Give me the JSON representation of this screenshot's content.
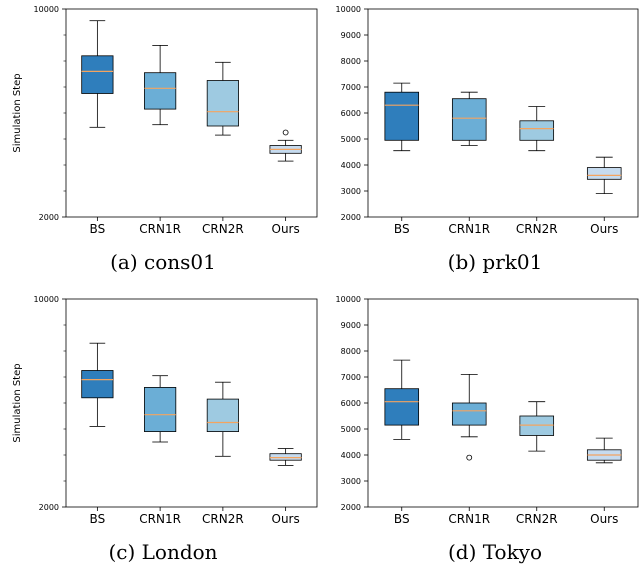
{
  "chart_data": [
    {
      "type": "box",
      "caption": "(a) cons01",
      "ylabel": "Simulation Step",
      "ylim": [
        2000,
        10000
      ],
      "yticks": [
        2000,
        10000
      ],
      "yticks_minor": [
        3000,
        4000,
        5000,
        6000,
        7000,
        8000,
        9000
      ],
      "categories": [
        "BS",
        "CRN1R",
        "CRN2R",
        "Ours"
      ],
      "colors": [
        "#2f7ebc",
        "#6baed6",
        "#9ecae1",
        "#c6dbef"
      ],
      "boxes": [
        {
          "whislo": 5450,
          "q1": 6750,
          "med": 7600,
          "q3": 8200,
          "whishi": 9550,
          "fliers": []
        },
        {
          "whislo": 5550,
          "q1": 6150,
          "med": 6950,
          "q3": 7550,
          "whishi": 8600,
          "fliers": []
        },
        {
          "whislo": 5150,
          "q1": 5500,
          "med": 6050,
          "q3": 7250,
          "whishi": 7950,
          "fliers": []
        },
        {
          "whislo": 4150,
          "q1": 4450,
          "med": 4600,
          "q3": 4750,
          "whishi": 4950,
          "fliers": [
            5250
          ]
        }
      ]
    },
    {
      "type": "box",
      "caption": "(b) prk01",
      "ylabel": "",
      "ylim": [
        2000,
        10000
      ],
      "yticks": [
        2000,
        3000,
        4000,
        5000,
        6000,
        7000,
        8000,
        9000,
        10000
      ],
      "yticks_minor": [],
      "categories": [
        "BS",
        "CRN1R",
        "CRN2R",
        "Ours"
      ],
      "colors": [
        "#2f7ebc",
        "#6baed6",
        "#9ecae1",
        "#c6dbef"
      ],
      "boxes": [
        {
          "whislo": 4550,
          "q1": 4950,
          "med": 6300,
          "q3": 6800,
          "whishi": 7150,
          "fliers": []
        },
        {
          "whislo": 4750,
          "q1": 4950,
          "med": 5800,
          "q3": 6550,
          "whishi": 6800,
          "fliers": []
        },
        {
          "whislo": 4550,
          "q1": 4950,
          "med": 5400,
          "q3": 5700,
          "whishi": 6250,
          "fliers": []
        },
        {
          "whislo": 2900,
          "q1": 3450,
          "med": 3600,
          "q3": 3900,
          "whishi": 4300,
          "fliers": []
        }
      ]
    },
    {
      "type": "box",
      "caption": "(c) London",
      "ylabel": "Simulation Step",
      "ylim": [
        2000,
        10000
      ],
      "yticks": [
        2000,
        10000
      ],
      "yticks_minor": [
        3000,
        4000,
        5000,
        6000,
        7000,
        8000,
        9000
      ],
      "categories": [
        "BS",
        "CRN1R",
        "CRN2R",
        "Ours"
      ],
      "colors": [
        "#2f7ebc",
        "#6baed6",
        "#9ecae1",
        "#c6dbef"
      ],
      "boxes": [
        {
          "whislo": 5100,
          "q1": 6200,
          "med": 6900,
          "q3": 7250,
          "whishi": 8300,
          "fliers": []
        },
        {
          "whislo": 4500,
          "q1": 4900,
          "med": 5550,
          "q3": 6600,
          "whishi": 7050,
          "fliers": []
        },
        {
          "whislo": 3950,
          "q1": 4900,
          "med": 5250,
          "q3": 6150,
          "whishi": 6800,
          "fliers": []
        },
        {
          "whislo": 3600,
          "q1": 3800,
          "med": 3900,
          "q3": 4050,
          "whishi": 4250,
          "fliers": []
        }
      ]
    },
    {
      "type": "box",
      "caption": "(d) Tokyo",
      "ylabel": "",
      "ylim": [
        2000,
        10000
      ],
      "yticks": [
        2000,
        3000,
        4000,
        5000,
        6000,
        7000,
        8000,
        9000,
        10000
      ],
      "yticks_minor": [],
      "categories": [
        "BS",
        "CRN1R",
        "CRN2R",
        "Ours"
      ],
      "colors": [
        "#2f7ebc",
        "#6baed6",
        "#9ecae1",
        "#c6dbef"
      ],
      "boxes": [
        {
          "whislo": 4600,
          "q1": 5150,
          "med": 6050,
          "q3": 6550,
          "whishi": 7650,
          "fliers": []
        },
        {
          "whislo": 4700,
          "q1": 5150,
          "med": 5700,
          "q3": 6000,
          "whishi": 7100,
          "fliers": [
            3900
          ]
        },
        {
          "whislo": 4150,
          "q1": 4750,
          "med": 5150,
          "q3": 5500,
          "whishi": 6050,
          "fliers": []
        },
        {
          "whislo": 3700,
          "q1": 3800,
          "med": 4000,
          "q3": 4200,
          "whishi": 4650,
          "fliers": []
        }
      ]
    }
  ]
}
